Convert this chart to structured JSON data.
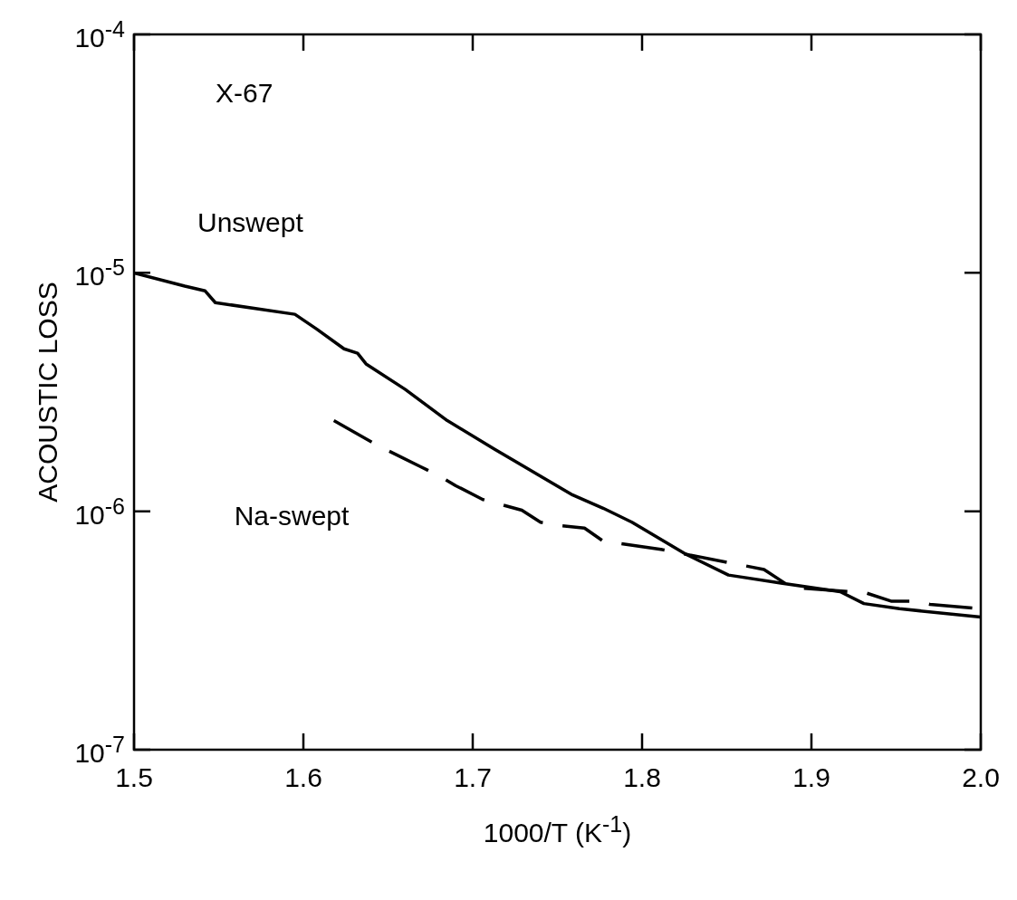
{
  "chart_data": {
    "type": "line",
    "xlabel": "1000/T (K$^{-1}$)",
    "ylabel": "ACOUSTIC LOSS",
    "annotations": [
      "X-67"
    ],
    "log": "y",
    "grid": false,
    "legend": false,
    "marker": "none",
    "xlim": [
      1.5,
      2.0
    ],
    "xticks": [
      {
        "value": 1.5,
        "label": "1.5"
      },
      {
        "value": 1.6,
        "label": "1.6"
      },
      {
        "value": 1.7,
        "label": "1.7"
      },
      {
        "value": 1.8,
        "label": "1.8"
      },
      {
        "value": 1.9,
        "label": "1.9"
      },
      {
        "value": 2.0,
        "label": "2.0"
      }
    ],
    "ylim": [
      1e-07,
      0.0001
    ],
    "yticks": [
      {
        "value": 1e-07,
        "label": "10$^{-7}$"
      },
      {
        "value": 1e-06,
        "label": "10$^{-6}$"
      },
      {
        "value": 1e-05,
        "label": "10$^{-5}$"
      },
      {
        "value": 0.0001,
        "label": "10$^{-4}$"
      }
    ],
    "series": [
      {
        "name": "Unswept",
        "color": "#000000",
        "line_style": "solid",
        "x": [
          1.5,
          1.53,
          1.542,
          1.548,
          1.595,
          1.608,
          1.624,
          1.632,
          1.637,
          1.66,
          1.685,
          1.713,
          1.741,
          1.759,
          1.777,
          1.794,
          1.826,
          1.851,
          1.882,
          1.917,
          1.931,
          1.952,
          2.0
        ],
        "values": [
          1e-05,
          8.8e-06,
          8.4e-06,
          7.5e-06,
          6.7e-06,
          5.8e-06,
          4.8e-06,
          4.6e-06,
          4.15e-06,
          3.25e-06,
          2.4e-06,
          1.82e-06,
          1.39e-06,
          1.17e-06,
          1.03e-06,
          9e-07,
          6.6e-07,
          5.4e-07,
          5e-07,
          4.6e-07,
          4.1e-07,
          3.9e-07,
          3.6e-07
        ]
      },
      {
        "name": "Na-swept",
        "color": "#000000",
        "line_style": "dashed",
        "x": [
          1.618,
          1.645,
          1.669,
          1.68,
          1.69,
          1.706,
          1.729,
          1.74,
          1.752,
          1.766,
          1.777,
          1.812,
          1.872,
          1.888,
          1.932,
          1.947,
          1.961,
          1.97,
          2.0
        ],
        "values": [
          2.4e-06,
          1.87e-06,
          1.54e-06,
          1.41e-06,
          1.28e-06,
          1.12e-06,
          1.01e-06,
          9e-07,
          8.7e-07,
          8.5e-07,
          7.5e-07,
          6.9e-07,
          5.7e-07,
          4.8e-07,
          4.55e-07,
          4.2e-07,
          4.2e-07,
          4.07e-07,
          3.9e-07
        ]
      }
    ]
  }
}
